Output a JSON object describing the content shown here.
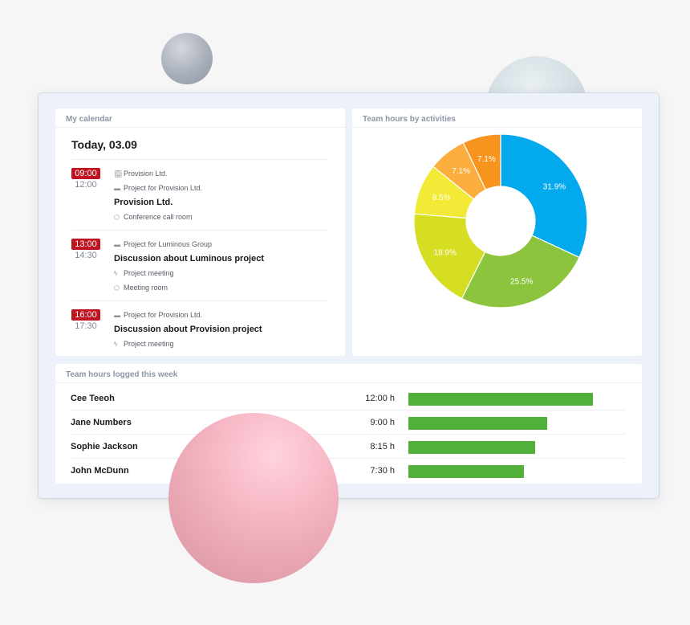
{
  "calendar": {
    "header": "My calendar",
    "date_label": "Today, 03.09",
    "events": [
      {
        "start": "09:00",
        "end": "12:00",
        "client": "Provision Ltd.",
        "project": "Project for Provision Ltd.",
        "title": "Provision Ltd.",
        "location": "Conference call room"
      },
      {
        "start": "13:00",
        "end": "14:30",
        "project": "Project for Luminous Group",
        "title": "Discussion about Luminous project",
        "activity": "Project meeting",
        "location": "Meeting room"
      },
      {
        "start": "16:00",
        "end": "17:30",
        "project": "Project for Provision Ltd.",
        "title": "Discussion about Provision project",
        "activity": "Project meeting"
      }
    ]
  },
  "pie": {
    "header": "Team hours by activities"
  },
  "chart_data": {
    "type": "pie",
    "donut": true,
    "title": "Team hours by activities",
    "slices": [
      {
        "label": "31.9%",
        "value": 31.9,
        "color": "#03a9ed"
      },
      {
        "label": "25.5%",
        "value": 25.5,
        "color": "#8cc43e"
      },
      {
        "label": "18.9%",
        "value": 18.9,
        "color": "#d6de24"
      },
      {
        "label": "9.5%",
        "value": 9.5,
        "color": "#f2ea36"
      },
      {
        "label": "7.1%",
        "value": 7.1,
        "color": "#fbae3d"
      },
      {
        "label": "7.1%",
        "value": 7.1,
        "color": "#f7941d"
      }
    ]
  },
  "team_hours": {
    "header": "Team hours logged this week",
    "max_hours": 12,
    "bar_color": "#4fb13a",
    "rows": [
      {
        "name": "Cee Teeoh",
        "hours_label": "12:00 h",
        "hours": 12.0
      },
      {
        "name": "Jane Numbers",
        "hours_label": "9:00 h",
        "hours": 9.0
      },
      {
        "name": "Sophie Jackson",
        "hours_label": "8:15 h",
        "hours": 8.25
      },
      {
        "name": "John McDunn",
        "hours_label": "7:30 h",
        "hours": 7.5
      }
    ]
  },
  "icons": {
    "client": "building-icon",
    "project": "briefcase-icon",
    "activity": "bolt-icon",
    "location": "cube-icon"
  }
}
